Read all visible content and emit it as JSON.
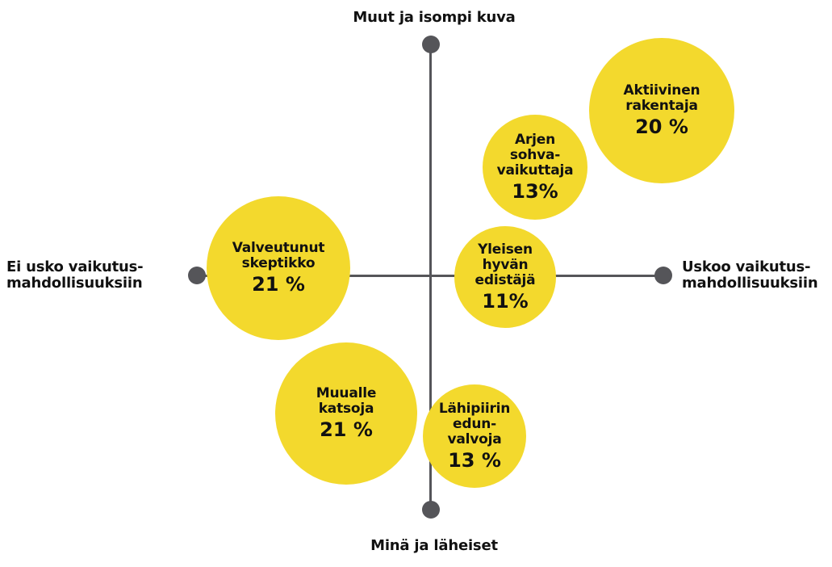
{
  "colors": {
    "bubble": "#f3d92d",
    "axis": "#555559",
    "text": "#111111",
    "background": "#ffffff"
  },
  "axes": {
    "top": "Muut ja isompi kuva",
    "bottom": "Minä ja läheiset",
    "left": [
      "Ei usko vaikutus-",
      "mahdollisuuksiin"
    ],
    "right": [
      "Uskoo vaikutus-",
      "mahdollisuuksiin"
    ]
  },
  "segments": [
    {
      "id": "aktiivinen-rakentaja",
      "lines": [
        "Aktiivinen",
        "rakentaja"
      ],
      "percent": "20 %"
    },
    {
      "id": "arjen-sohvavaikuttaja",
      "lines": [
        "Arjen",
        "sohva-",
        "vaikuttaja"
      ],
      "percent": "13%"
    },
    {
      "id": "valveutunut-skeptikko",
      "lines": [
        "Valveutunut",
        "skeptikko"
      ],
      "percent": "21 %"
    },
    {
      "id": "yleisen-hyvan-edistaja",
      "lines": [
        "Yleisen",
        "hyvän",
        "edistäjä"
      ],
      "percent": "11%"
    },
    {
      "id": "muualle-katsoja",
      "lines": [
        "Muualle",
        "katsoja"
      ],
      "percent": "21 %"
    },
    {
      "id": "lahipiirin-edunvalvoja",
      "lines": [
        "Lähipiirin",
        "edun-",
        "valvoja"
      ],
      "percent": "13 %"
    }
  ]
}
